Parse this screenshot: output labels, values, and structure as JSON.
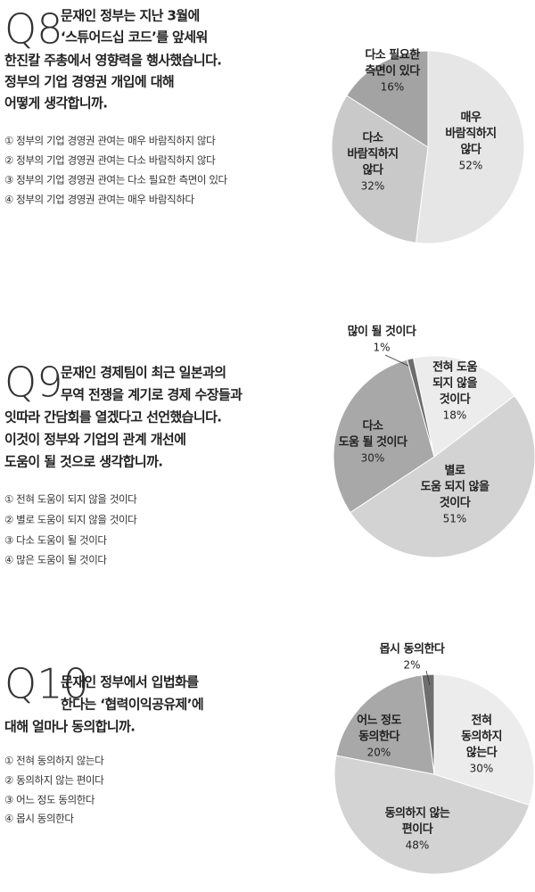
{
  "chart_data": [
    {
      "type": "pie",
      "label": "Q8",
      "question": [
        "문재인 정부는 지난 3월에",
        "‘스튜어드십 코드’를 앞세워",
        "한진칼 주총에서 영향력을 행사했습니다.",
        "정부의 기업 경영권 개입에 대해",
        "어떻게 생각합니까."
      ],
      "options": [
        "① 정부의 기업 경영권 관여는 매우 바람직하지 않다",
        "② 정부의 기업 경영권 관여는 다소 바람직하지 않다",
        "③ 정부의 기업 경영권 관여는 다소 필요한 측면이 있다",
        "④ 정부의 기업 경영권 관여는 매우 바람직하다"
      ],
      "categories": [
        [
          "매우",
          "바람직하지",
          "않다"
        ],
        [
          "다소",
          "바람직하지",
          "않다"
        ],
        [
          "다소 필요한",
          "측면이 있다"
        ]
      ],
      "values": [
        52,
        32,
        16
      ],
      "value_labels": [
        "52%",
        "32%",
        "16%"
      ],
      "colors": [
        "#e6e6e6",
        "#c9c9c9",
        "#a3a3a3"
      ]
    },
    {
      "type": "pie",
      "label": "Q9",
      "question": [
        "문재인 경제팀이 최근 일본과의",
        "무역 전쟁을 계기로 경제 수장들과",
        "잇따라 간담회를 열겠다고 선언했습니다.",
        "이것이 정부와 기업의 관계 개선에",
        "도움이 될 것으로 생각합니까."
      ],
      "options": [
        "① 전혀 도움이 되지 않을 것이다",
        "② 별로 도움이 되지 않을 것이다",
        "③ 다소 도움이 될 것이다",
        "④ 많은 도움이 될 것이다"
      ],
      "categories": [
        [
          "전혀 도움",
          "되지 않을",
          "것이다"
        ],
        [
          "별로",
          "도움 되지 않을",
          "것이다"
        ],
        [
          "다소",
          "도움 될 것이다"
        ],
        [
          "많이 될 것이다"
        ]
      ],
      "values": [
        18,
        51,
        30,
        1
      ],
      "value_labels": [
        "18%",
        "51%",
        "30%",
        "1%"
      ],
      "colors": [
        "#ececec",
        "#d3d3d3",
        "#a8a8a8",
        "#6e6e6e"
      ]
    },
    {
      "type": "pie",
      "label": "Q10",
      "question": [
        "문재인 정부에서 입법화를",
        "한다는 ‘협력이익공유제’에",
        "대해 얼마나 동의합니까."
      ],
      "options": [
        "① 전혀 동의하지 않는다",
        "② 동의하지 않는 편이다",
        "③ 어느 정도 동의한다",
        "④ 몹시 동의한다"
      ],
      "categories": [
        [
          "전혀",
          "동의하지",
          "않는다"
        ],
        [
          "동의하지 않는",
          "편이다"
        ],
        [
          "어느 정도",
          "동의한다"
        ],
        [
          "몹시 동의한다"
        ]
      ],
      "values": [
        30,
        48,
        20,
        2
      ],
      "value_labels": [
        "30%",
        "48%",
        "20%",
        "2%"
      ],
      "colors": [
        "#ececec",
        "#d3d3d3",
        "#a8a8a8",
        "#6e6e6e"
      ]
    }
  ]
}
